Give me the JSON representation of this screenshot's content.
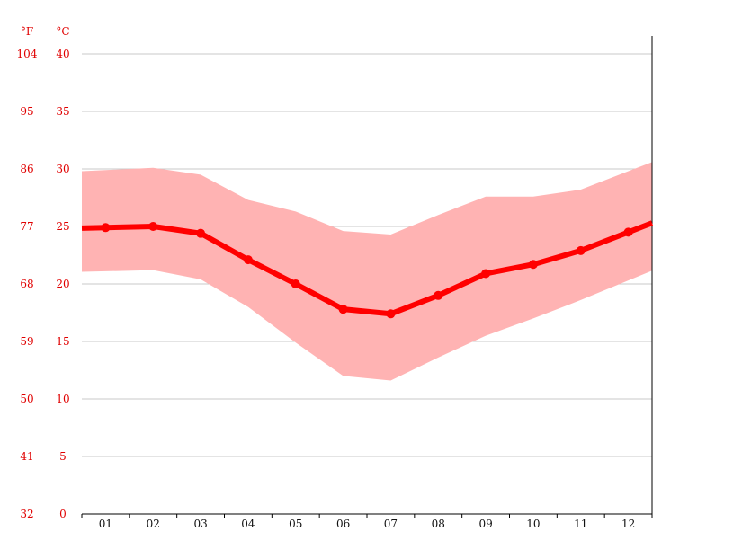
{
  "chart_data": {
    "type": "line",
    "units": {
      "fahrenheit": "°F",
      "celsius": "°C"
    },
    "categories": [
      "01",
      "02",
      "03",
      "04",
      "05",
      "06",
      "07",
      "08",
      "09",
      "10",
      "11",
      "12"
    ],
    "ylim": [
      0,
      40
    ],
    "yticks_c": [
      "0",
      "5",
      "10",
      "15",
      "20",
      "25",
      "30",
      "35",
      "40"
    ],
    "yticks_f": [
      "32",
      "41",
      "50",
      "59",
      "68",
      "77",
      "86",
      "95",
      "104"
    ],
    "grid": true,
    "series": [
      {
        "values": [
          24.9,
          25.0,
          24.4,
          22.1,
          20.0,
          17.8,
          17.4,
          19.0,
          20.9,
          21.7,
          22.9,
          24.5
        ]
      }
    ],
    "band": {
      "upper": [
        29.9,
        30.1,
        29.5,
        27.3,
        26.3,
        24.6,
        24.3,
        26.0,
        27.6,
        27.6,
        28.2,
        29.8
      ],
      "lower": [
        21.1,
        21.2,
        20.4,
        18.0,
        14.9,
        12.0,
        11.6,
        13.6,
        15.5,
        17.0,
        18.6,
        20.3
      ]
    },
    "colors": {
      "line": "#ff0000",
      "band": "#ffb3b3",
      "text": "#e00000"
    }
  }
}
